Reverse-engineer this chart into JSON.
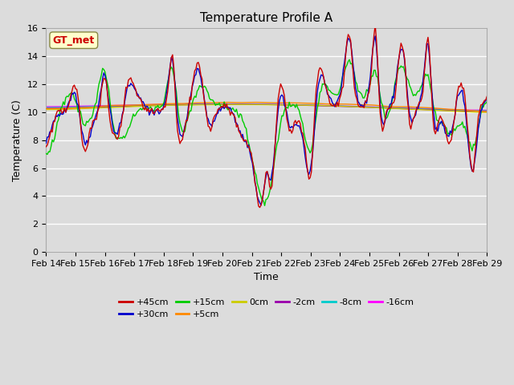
{
  "title": "Temperature Profile A",
  "xlabel": "Time",
  "ylabel": "Temperature (C)",
  "ylim": [
    0,
    16
  ],
  "yticks": [
    0,
    2,
    4,
    6,
    8,
    10,
    12,
    14,
    16
  ],
  "x_labels": [
    "Feb 14",
    "Feb 15",
    "Feb 16",
    "Feb 17",
    "Feb 18",
    "Feb 19",
    "Feb 20",
    "Feb 21",
    "Feb 22",
    "Feb 23",
    "Feb 24",
    "Feb 25",
    "Feb 26",
    "Feb 27",
    "Feb 28",
    "Feb 29"
  ],
  "legend_entries": [
    "+45cm",
    "+30cm",
    "+15cm",
    "+5cm",
    "0cm",
    "-2cm",
    "-8cm",
    "-16cm"
  ],
  "legend_colors": [
    "#cc0000",
    "#0000cc",
    "#00cc00",
    "#ff8800",
    "#cccc00",
    "#9900aa",
    "#00cccc",
    "#ff00ff"
  ],
  "annotation_text": "GT_met",
  "annotation_color": "#cc0000",
  "annotation_bg": "#ffffcc",
  "background_color": "#dcdcdc",
  "plot_bg": "#dcdcdc",
  "grid_color": "#ffffff",
  "figwidth": 6.4,
  "figheight": 4.8,
  "dpi": 100
}
